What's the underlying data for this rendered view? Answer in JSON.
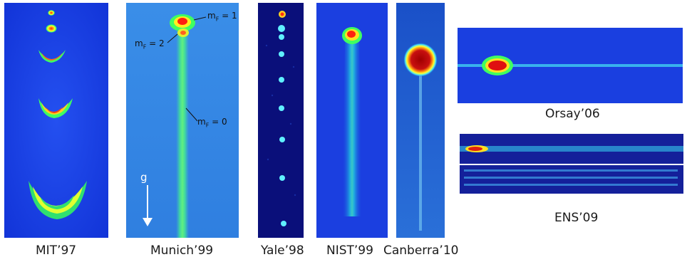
{
  "captions": {
    "mit": "MIT’97",
    "munich": "Munich’99",
    "yale": "Yale’98",
    "nist": "NIST’99",
    "canberra": "Canberra’10",
    "orsay": "Orsay’06",
    "ens": "ENS’09"
  },
  "munich_annotations": {
    "mf1": "m",
    "mf1_sub": "F",
    "mf1_val": " = 1",
    "mf2": "m",
    "mf2_sub": "F",
    "mf2_val": " = 2",
    "mf0": "m",
    "mf0_sub": "F",
    "mf0_val": " = 0",
    "gravity": "g"
  },
  "colors": {
    "background_blue": "#1a3fe0",
    "dark_blue": "#0a0f6e",
    "cyan": "#00e0e0",
    "green": "#40ff60",
    "yellow": "#ffff20",
    "red": "#ff2010",
    "dark_red": "#a00000"
  }
}
